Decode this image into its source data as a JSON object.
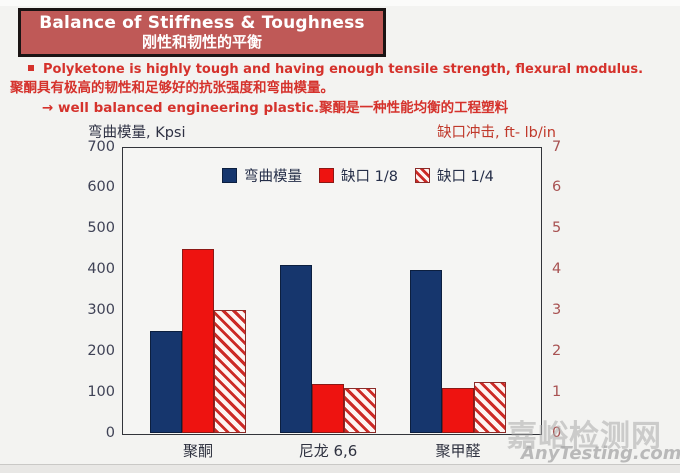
{
  "header": {
    "title_en": "Balance of Stiffness & Toughness",
    "title_zh": "刚性和韧性的平衡",
    "banner_bg": "#bf5957",
    "banner_border": "#1a1414",
    "title_color": "#ffffff"
  },
  "bullets": {
    "line1_en": "Polyketone is highly tough and having enough tensile strength, flexural modulus.",
    "line1_zh": "聚酮具有极高的韧性和足够好的抗张强度和弯曲模量。",
    "line2": "→ well balanced engineering plastic.聚酮是一种性能均衡的工程塑料",
    "text_color": "#d5322c"
  },
  "chart_data": {
    "type": "bar",
    "categories": [
      "聚酮",
      "尼龙 6,6",
      "聚甲醛"
    ],
    "series": [
      {
        "name": "弯曲模量",
        "axis": "left",
        "style": "solid-blue",
        "color": "#16366d",
        "values": [
          250,
          410,
          400
        ]
      },
      {
        "name": "缺口 1/8",
        "axis": "right",
        "style": "solid-red",
        "color": "#ee1310",
        "values": [
          4.5,
          1.2,
          1.1
        ]
      },
      {
        "name": "缺口 1/4",
        "axis": "right",
        "style": "hatch",
        "color": "#cc2a26",
        "values": [
          3.0,
          1.1,
          1.25
        ]
      }
    ],
    "left_axis": {
      "title": "弯曲模量, Kpsi",
      "ticks": [
        700,
        600,
        500,
        400,
        300,
        200,
        100,
        0
      ],
      "max": 700,
      "color": "#3f4256"
    },
    "right_axis": {
      "title": "缺口冲击, ft- lb/in",
      "ticks": [
        7,
        6,
        5,
        4,
        3,
        2,
        1,
        0
      ],
      "max": 7,
      "color": "#a85252"
    },
    "legend_position": "top-center-inside",
    "grid": false
  },
  "watermark": {
    "zh": "嘉峪检测网",
    "en": "AnyTesting.com"
  }
}
